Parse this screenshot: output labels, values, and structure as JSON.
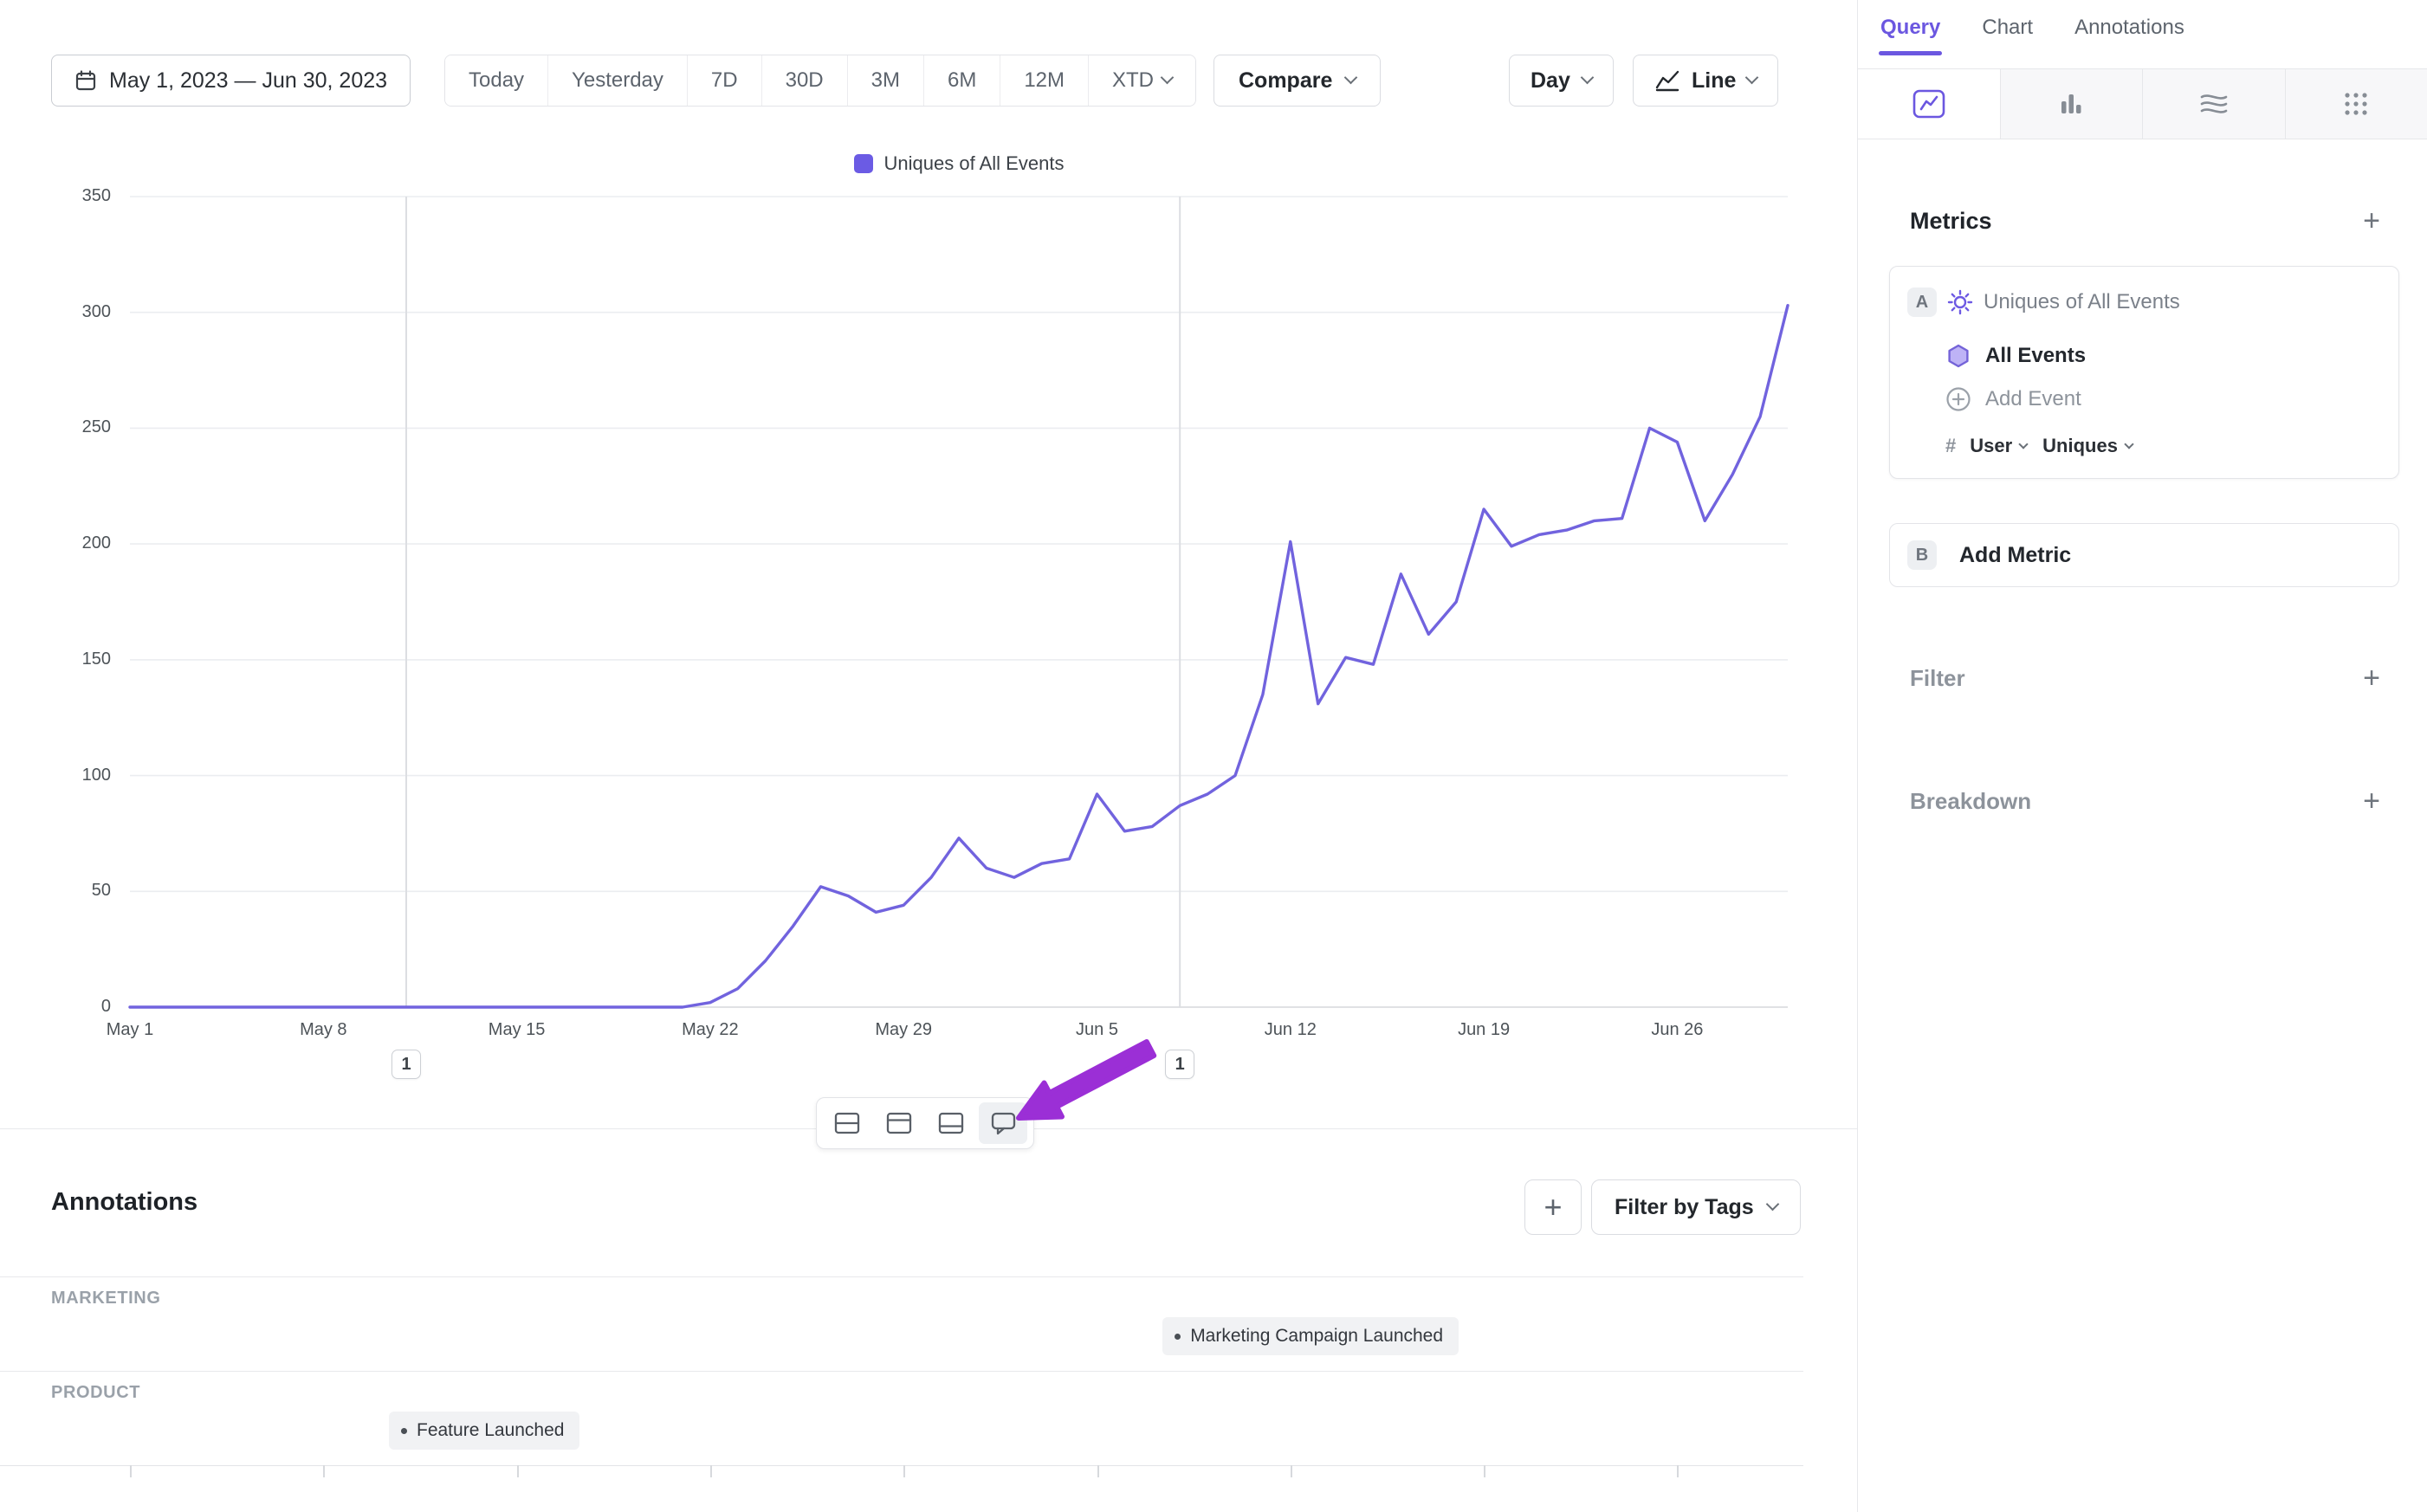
{
  "toolbar": {
    "date_range": "May 1, 2023 — Jun 30, 2023",
    "quick_ranges": [
      "Today",
      "Yesterday",
      "7D",
      "30D",
      "3M",
      "6M",
      "12M",
      "XTD"
    ],
    "compare_label": "Compare",
    "granularity_label": "Day",
    "chart_type_label": "Line"
  },
  "icons": {
    "plus": "+"
  },
  "legend": {
    "label": "Uniques of All Events",
    "swatch_color": "#6b5be4"
  },
  "chart_data": {
    "type": "line",
    "title": "Uniques of All Events",
    "x_start": "May 1, 2023",
    "x_end": "Jun 30, 2023",
    "x_unit": "day",
    "x_tick_labels": [
      "May 1",
      "May 8",
      "May 15",
      "May 22",
      "May 29",
      "Jun 5",
      "Jun 12",
      "Jun 19",
      "Jun 26"
    ],
    "x_tick_days": [
      0,
      7,
      14,
      21,
      28,
      35,
      42,
      49,
      56
    ],
    "y_ticks": [
      0,
      50,
      100,
      150,
      200,
      250,
      300,
      350
    ],
    "ylim": [
      0,
      350
    ],
    "grid": true,
    "legend_position": "top-center",
    "series": [
      {
        "name": "Uniques of All Events",
        "color": "#7163de",
        "values": [
          0,
          0,
          0,
          0,
          0,
          0,
          0,
          0,
          0,
          0,
          0,
          0,
          0,
          0,
          0,
          0,
          0,
          0,
          0,
          0,
          0,
          2,
          8,
          20,
          35,
          52,
          48,
          41,
          44,
          56,
          73,
          60,
          56,
          62,
          64,
          92,
          76,
          78,
          87,
          92,
          100,
          135,
          201,
          131,
          151,
          148,
          187,
          161,
          175,
          215,
          199,
          204,
          206,
          210,
          211,
          250,
          244,
          210,
          230,
          255,
          303
        ]
      }
    ],
    "annotation_markers": [
      {
        "day": 10,
        "label": "1"
      },
      {
        "day": 38,
        "label": "1"
      }
    ]
  },
  "layout_toolbar": {
    "buttons": [
      "rows-layout",
      "header-layout",
      "footer-layout",
      "comments"
    ]
  },
  "annotations_panel": {
    "title": "Annotations",
    "filter_by_tags_label": "Filter by Tags",
    "groups": [
      {
        "name": "MARKETING",
        "items": [
          {
            "label": "Marketing Campaign Launched",
            "day": 38
          }
        ]
      },
      {
        "name": "PRODUCT",
        "items": [
          {
            "label": "Feature Launched",
            "day": 10
          }
        ]
      }
    ]
  },
  "sidebar": {
    "tabs": [
      {
        "label": "Query",
        "active": true
      },
      {
        "label": "Chart",
        "active": false
      },
      {
        "label": "Annotations",
        "active": false
      }
    ],
    "view_tabs": [
      "insights",
      "bar",
      "flows",
      "grid"
    ],
    "metrics": {
      "heading": "Metrics",
      "metric_a": {
        "badge": "A",
        "title": "Uniques of All Events",
        "event_name": "All Events",
        "add_event_label": "Add Event",
        "aggregation_prefix": "#",
        "aggregation_entity": "User",
        "aggregation_measure": "Uniques"
      },
      "metric_b": {
        "badge": "B",
        "label": "Add Metric"
      }
    },
    "filter_label": "Filter",
    "breakdown_label": "Breakdown"
  },
  "colors": {
    "accent": "#6b57e0",
    "line": "#7163de",
    "arrow": "#9b2fd6"
  }
}
